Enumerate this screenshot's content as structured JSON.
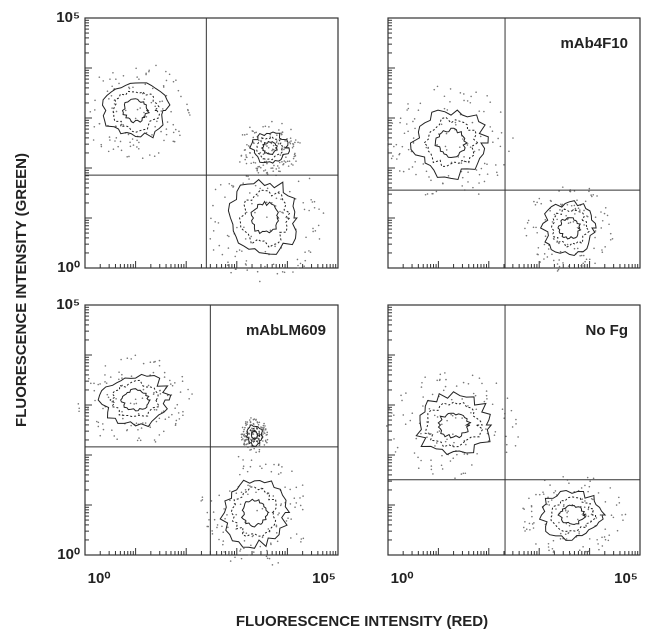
{
  "ylabel": "FLUORESCENCE INTENSITY (GREEN)",
  "xlabel": "FLUORESCENCE INTENSITY (RED)",
  "chart_data": [
    {
      "type": "contour",
      "xscale": "log",
      "yscale": "log",
      "xlim": [
        1,
        100000
      ],
      "ylim": [
        1,
        100000
      ],
      "yticks": [
        {
          "value": 1,
          "label": "10⁰"
        },
        {
          "value": 100000,
          "label": "10⁵"
        }
      ],
      "gate_x": 250,
      "gate_y": 72
    },
    {
      "type": "contour",
      "title": "mAb4F10",
      "xscale": "log",
      "yscale": "log",
      "xlim": [
        1,
        100000
      ],
      "ylim": [
        1,
        100000
      ],
      "gate_x": 210,
      "gate_y": 36
    },
    {
      "type": "contour",
      "title": "mAbLM609",
      "xscale": "log",
      "yscale": "log",
      "xlim": [
        1,
        100000
      ],
      "ylim": [
        1,
        100000
      ],
      "yticks": [
        {
          "value": 1,
          "label": "10⁰"
        },
        {
          "value": 100000,
          "label": "10⁵"
        }
      ],
      "xticks": [
        {
          "value": 1,
          "label": "10⁰"
        },
        {
          "value": 100000,
          "label": "10⁵"
        }
      ],
      "gate_x": 300,
      "gate_y": 145
    },
    {
      "type": "contour",
      "title": "No Fg",
      "xscale": "log",
      "yscale": "log",
      "xlim": [
        1,
        100000
      ],
      "ylim": [
        1,
        100000
      ],
      "xticks": [
        {
          "value": 1,
          "label": "10⁰"
        },
        {
          "value": 100000,
          "label": "10⁵"
        }
      ],
      "gate_x": 210,
      "gate_y": 32
    }
  ]
}
